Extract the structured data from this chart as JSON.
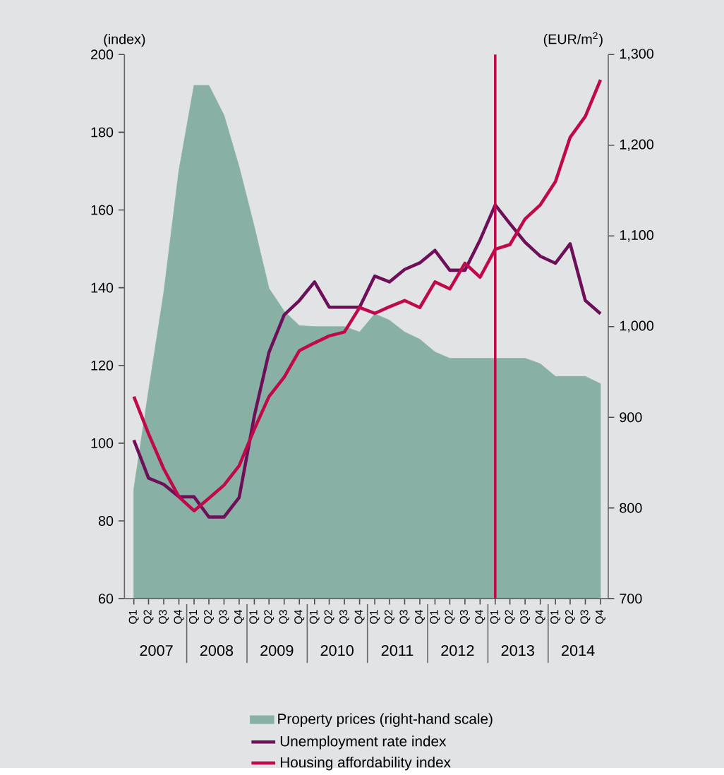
{
  "chart_data": {
    "type": "line",
    "ylabel": "(index)",
    "y2label": "(EUR/m$^{2}$)",
    "x": [
      "2007-02-15",
      "2007-05-15",
      "2007-08-15",
      "2007-11-15",
      "2008-02-15",
      "2008-05-15",
      "2008-08-15",
      "2008-11-15",
      "2009-02-15",
      "2009-05-15",
      "2009-08-15",
      "2009-11-15",
      "2010-02-15",
      "2010-05-15",
      "2010-08-15",
      "2010-11-15",
      "2011-02-15",
      "2011-05-15",
      "2011-08-15",
      "2011-11-15",
      "2012-02-15",
      "2012-05-15",
      "2012-08-15",
      "2012-11-15",
      "2013-02-15",
      "2013-05-15",
      "2013-08-15",
      "2013-11-15",
      "2014-02-15",
      "2014-05-15",
      "2014-08-15",
      "2014-11-15"
    ],
    "xlim": [
      "2006-12-20",
      "2015-01-01"
    ],
    "xticks": [
      {
        "value": "2007-02-15",
        "label": "Q1"
      },
      {
        "value": "2007-05-15",
        "label": "Q2"
      },
      {
        "value": "2007-08-15",
        "label": "Q3"
      },
      {
        "value": "2007-11-15",
        "label": "Q4"
      },
      {
        "value": "2008-02-15",
        "label": "Q1"
      },
      {
        "value": "2008-05-15",
        "label": "Q2"
      },
      {
        "value": "2008-08-15",
        "label": "Q3"
      },
      {
        "value": "2008-11-15",
        "label": "Q4"
      },
      {
        "value": "2009-02-15",
        "label": "Q1"
      },
      {
        "value": "2009-05-15",
        "label": "Q2"
      },
      {
        "value": "2009-08-15",
        "label": "Q3"
      },
      {
        "value": "2009-11-15",
        "label": "Q4"
      },
      {
        "value": "2010-02-15",
        "label": "Q1"
      },
      {
        "value": "2010-05-15",
        "label": "Q2"
      },
      {
        "value": "2010-08-15",
        "label": "Q3"
      },
      {
        "value": "2010-11-15",
        "label": "Q4"
      },
      {
        "value": "2011-02-15",
        "label": "Q1"
      },
      {
        "value": "2011-05-15",
        "label": "Q2"
      },
      {
        "value": "2011-08-15",
        "label": "Q3"
      },
      {
        "value": "2011-11-15",
        "label": "Q4"
      },
      {
        "value": "2012-02-15",
        "label": "Q1"
      },
      {
        "value": "2012-05-15",
        "label": "Q2"
      },
      {
        "value": "2012-08-15",
        "label": "Q3"
      },
      {
        "value": "2012-11-15",
        "label": "Q4"
      },
      {
        "value": "2013-02-15",
        "label": "Q1"
      },
      {
        "value": "2013-05-15",
        "label": "Q2"
      },
      {
        "value": "2013-08-15",
        "label": "Q3"
      },
      {
        "value": "2013-11-15",
        "label": "Q4"
      },
      {
        "value": "2014-02-15",
        "label": "Q1"
      },
      {
        "value": "2014-05-15",
        "label": "Q2"
      },
      {
        "value": "2014-08-15",
        "label": "Q3"
      },
      {
        "value": "2014-11-15",
        "label": "Q4"
      }
    ],
    "series": [
      {
        "name": "Property prices (right-hand scale)",
        "type": "area",
        "axis": "y2",
        "color": "#88b0a4",
        "values": [
          821,
          929,
          1037,
          1172,
          1266,
          1266,
          1233,
          1176,
          1110,
          1042,
          1017,
          1001,
          1000,
          1000,
          1000,
          994,
          1014,
          1007,
          994,
          986,
          972,
          965,
          965,
          965,
          965,
          965,
          965,
          959,
          945,
          945,
          945,
          937
        ]
      },
      {
        "name": "Unemployment rate index",
        "color": "#6e0f5a",
        "values": [
          100.8,
          91,
          89.4,
          86.2,
          86.2,
          81,
          81,
          86,
          107,
          123.4,
          133,
          136.7,
          141.5,
          135,
          135,
          135,
          143,
          141.5,
          144.7,
          146.4,
          149.6,
          144.5,
          144.5,
          152.3,
          161.3,
          156.5,
          151.7,
          148.1,
          146.3,
          151.3,
          136.7,
          133.3
        ]
      },
      {
        "name": "Housing affordability index",
        "color": "#c0094a",
        "values": [
          112,
          102.4,
          93.4,
          86.2,
          82.6,
          85.8,
          89.2,
          94.2,
          103.6,
          112,
          117,
          123.8,
          125.8,
          127.6,
          128.6,
          134.9,
          133.4,
          135.1,
          136.7,
          134.9,
          141.5,
          139.7,
          146.3,
          142.7,
          149.9,
          151.1,
          157.7,
          161.3,
          167.3,
          178.7,
          184.1,
          193.5
        ]
      }
    ],
    "ylim": [
      60,
      200
    ],
    "yticks": [
      60,
      80,
      100,
      120,
      140,
      160,
      180,
      200
    ],
    "y2lim": [
      700,
      1300
    ],
    "y2ticks": [
      {
        "value": 700,
        "label": "700"
      },
      {
        "value": 800,
        "label": "800"
      },
      {
        "value": 900,
        "label": "900"
      },
      {
        "value": 1000,
        "label": "1,000"
      },
      {
        "value": 1100,
        "label": "1,100"
      },
      {
        "value": 1200,
        "label": "1,200"
      },
      {
        "value": 1300,
        "label": "1,300"
      }
    ],
    "ref_lines": [
      {
        "axis": "x",
        "value": "2013-02-15",
        "color": "#c0094a"
      }
    ],
    "annotations": [
      "2007",
      "2008",
      "2009",
      "2010",
      "2011",
      "2012",
      "2013",
      "2014"
    ],
    "legend": "bottom"
  }
}
